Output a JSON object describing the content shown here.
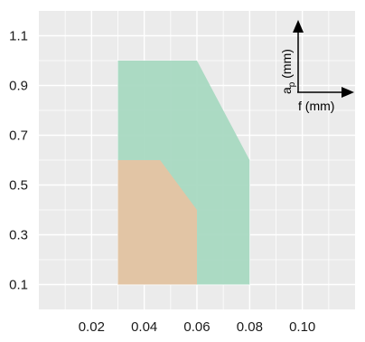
{
  "chart_data": {
    "type": "area",
    "x_ticks": [
      0.02,
      0.04,
      0.06,
      0.08,
      0.1
    ],
    "x_tick_labels": [
      "0.02",
      "0.04",
      "0.06",
      "0.08",
      "0.10"
    ],
    "y_ticks": [
      0.1,
      0.3,
      0.5,
      0.7,
      0.9,
      1.1
    ],
    "y_tick_labels": [
      "0.1",
      "0.3",
      "0.5",
      "0.7",
      "0.9",
      "1.1"
    ],
    "xlim": [
      0.0,
      0.12
    ],
    "ylim": [
      0.0,
      1.2
    ],
    "grid": true,
    "series": [
      {
        "color": "#a8d9c1",
        "polygon": [
          [
            0.03,
            0.1
          ],
          [
            0.03,
            1.0
          ],
          [
            0.06,
            1.0
          ],
          [
            0.08,
            0.6
          ],
          [
            0.08,
            0.1
          ]
        ]
      },
      {
        "color": "#e5c4a3",
        "polygon": [
          [
            0.03,
            0.1
          ],
          [
            0.03,
            0.6
          ],
          [
            0.046,
            0.6
          ],
          [
            0.06,
            0.4
          ],
          [
            0.06,
            0.1
          ]
        ]
      }
    ],
    "inset_axes": {
      "y_label_main": "a",
      "y_label_sub": "p",
      "y_label_unit": " (mm)",
      "x_label": "f (mm)"
    }
  }
}
